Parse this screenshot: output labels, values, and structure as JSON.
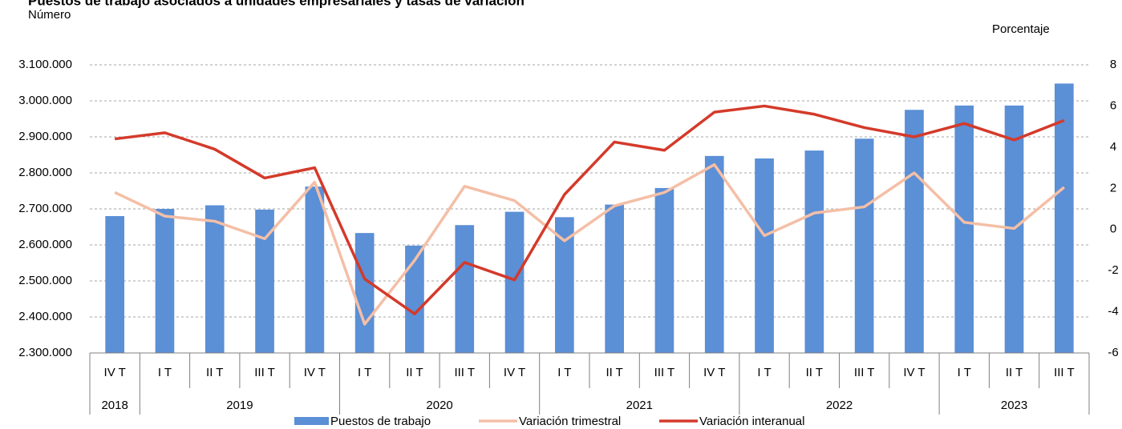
{
  "chart_data": {
    "type": "bar-line",
    "title": "Puestos de trabajo asociados a unidades empresariales y tasas de variación",
    "ylabel": "Número",
    "y2label": "Porcentaje",
    "categories": [
      [
        "IV T",
        "2018"
      ],
      [
        "I T",
        "2019"
      ],
      [
        "II T",
        "2019"
      ],
      [
        "III T",
        "2019"
      ],
      [
        "IV T",
        "2019"
      ],
      [
        "I T",
        "2020"
      ],
      [
        "II T",
        "2020"
      ],
      [
        "III T",
        "2020"
      ],
      [
        "IV T",
        "2020"
      ],
      [
        "I T",
        "2021"
      ],
      [
        "II T",
        "2021"
      ],
      [
        "III T",
        "2021"
      ],
      [
        "IV T",
        "2021"
      ],
      [
        "I T",
        "2022"
      ],
      [
        "II T",
        "2022"
      ],
      [
        "III T",
        "2022"
      ],
      [
        "IV T",
        "2022"
      ],
      [
        "I T",
        "2023"
      ],
      [
        "II T",
        "2023"
      ],
      [
        "III T",
        "2023"
      ]
    ],
    "series": [
      {
        "name": "Puestos de trabajo",
        "type": "bar",
        "color": "#5b8fd6",
        "values": [
          2680000,
          2700000,
          2710000,
          2698000,
          2762000,
          2633000,
          2598000,
          2655000,
          2692000,
          2677000,
          2712000,
          2758000,
          2847000,
          2840000,
          2862000,
          2895000,
          2975000,
          2987000,
          2987000,
          3048000
        ]
      },
      {
        "name": "Variación trimestral",
        "type": "line",
        "axis": "y2",
        "color": "#f4bfa6",
        "values": [
          1.8,
          0.65,
          0.4,
          -0.45,
          2.3,
          -4.6,
          -1.5,
          2.1,
          1.4,
          -0.55,
          1.15,
          1.8,
          3.15,
          -0.3,
          0.8,
          1.1,
          2.75,
          0.35,
          0.05,
          2.05
        ]
      },
      {
        "name": "Variación interanual",
        "type": "line",
        "axis": "y2",
        "color": "#d43a2a",
        "values": [
          4.4,
          4.7,
          3.9,
          2.5,
          3.0,
          -2.4,
          -4.1,
          -1.6,
          -2.45,
          1.7,
          4.25,
          3.85,
          5.7,
          6.0,
          5.6,
          4.95,
          4.5,
          5.15,
          4.35,
          5.3
        ]
      }
    ],
    "ylim": [
      2300000,
      3100000
    ],
    "yticks": [
      {
        "value": 2300000,
        "label": "2.300.000"
      },
      {
        "value": 2400000,
        "label": "2.400.000"
      },
      {
        "value": 2500000,
        "label": "2.500.000"
      },
      {
        "value": 2600000,
        "label": "2.600.000"
      },
      {
        "value": 2700000,
        "label": "2.700.000"
      },
      {
        "value": 2800000,
        "label": "2.800.000"
      },
      {
        "value": 2900000,
        "label": "2.900.000"
      },
      {
        "value": 3000000,
        "label": "3.000.000"
      },
      {
        "value": 3100000,
        "label": "3.100.000"
      }
    ],
    "y2lim": [
      -6,
      8
    ],
    "y2ticks": [
      -6,
      -4,
      -2,
      0,
      2,
      4,
      6,
      8
    ],
    "grid": true,
    "legend": "bottom"
  }
}
